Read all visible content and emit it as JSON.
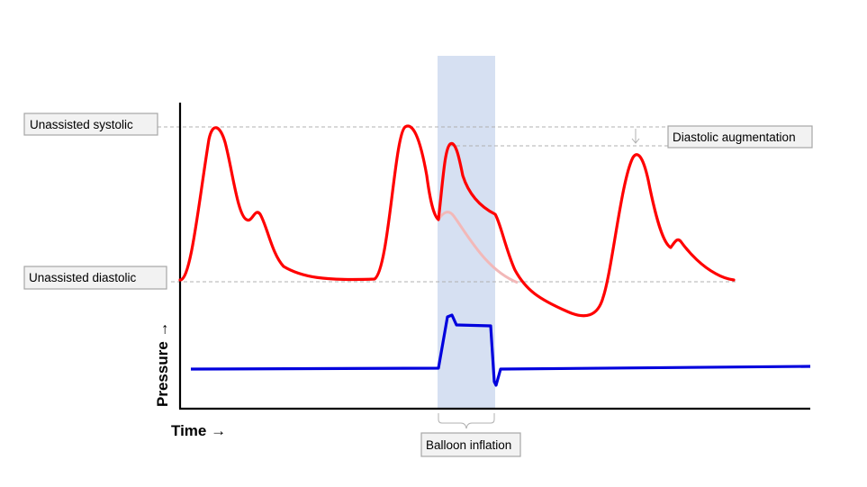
{
  "labels": {
    "unassisted_systolic": "Unassisted systolic",
    "unassisted_diastolic": "Unassisted diastolic",
    "diastolic_augmentation": "Diastolic augmentation",
    "balloon_inflation": "Balloon inflation"
  },
  "axes": {
    "y_label": "Pressure →",
    "x_label": "Time →"
  },
  "colors": {
    "arterial_pressure": "#ff0000",
    "unassisted_ghost": "#f2b8b8",
    "balloon_pressure": "#0000dd",
    "inflation_band": "#d6e0f2",
    "axis": "#000000",
    "guide": "#b0b0b0"
  }
}
